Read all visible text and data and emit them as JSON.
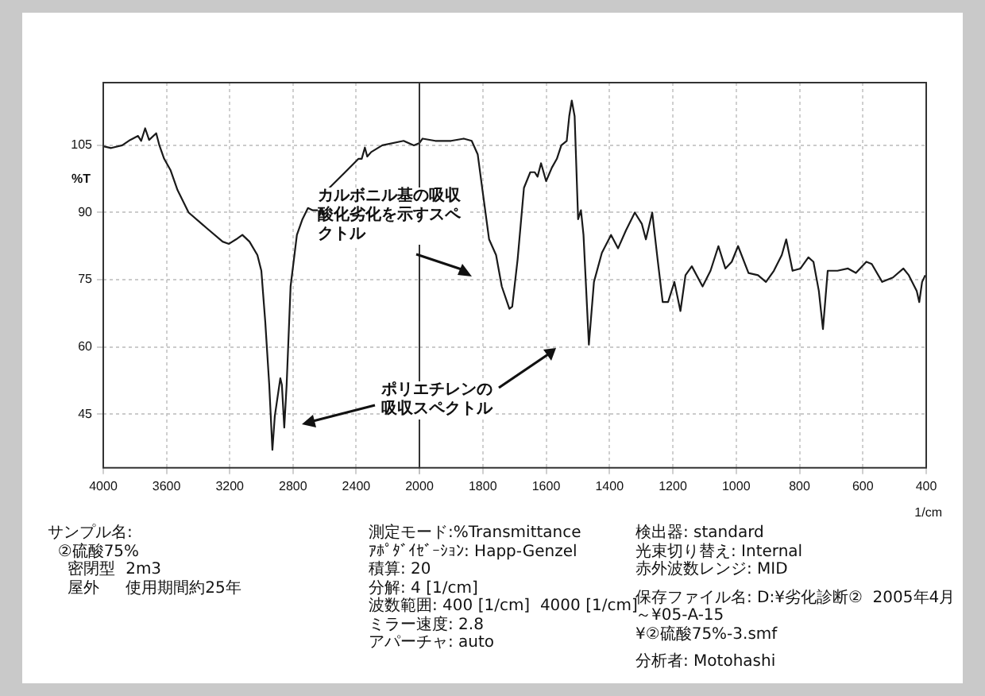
{
  "chart_data": [
    {
      "type": "line",
      "ylabel": "%T",
      "x": [
        4000,
        3950,
        3880,
        3830,
        3780,
        3760,
        3735,
        3710,
        3665,
        3645,
        3615,
        3575,
        3530,
        3460,
        3345,
        3245,
        3205,
        3160,
        3120,
        3075,
        3025,
        3000,
        2975,
        2950,
        2930,
        2915,
        2880,
        2870,
        2855,
        2840,
        2815,
        2775,
        2740,
        2705,
        2675,
        2640,
        2570,
        2470,
        2385,
        2365,
        2345,
        2330,
        2305,
        2235,
        2100,
        2035,
        2000
      ],
      "series": [
        {
          "color": "#1a1a1a",
          "values": [
            104.8,
            104.4,
            105,
            106.2,
            107.1,
            106,
            108.8,
            106.2,
            107.7,
            105,
            102,
            99.5,
            95,
            90,
            86.5,
            83.5,
            83,
            84,
            85,
            83.5,
            80.5,
            77,
            65.5,
            51.5,
            37,
            44.5,
            53,
            51.5,
            42,
            51.5,
            73.5,
            85,
            88.5,
            91,
            90.5,
            90.5,
            95.5,
            99,
            102,
            102,
            104.5,
            102.5,
            103.5,
            105,
            106,
            105,
            105.5
          ]
        }
      ],
      "xlim": [
        4000,
        2000
      ],
      "xticks": [
        4000,
        3600,
        3200,
        2800,
        2400,
        2000
      ],
      "ylim": [
        33,
        119
      ],
      "yticks": [
        105,
        90,
        75,
        60,
        45
      ],
      "grid": true,
      "annotations": [
        "カルボニル基の吸収酸化劣化を示すスペクトル",
        "ポリエチレンの吸収スペクトル",
        "サンプル名:\n  ②硫酸75%\n    密閉型  2m3\n    屋外　  使用期間約25年",
        "測定モード:%Transmittance\nｱﾎﾟﾀﾞｲｾﾞｰｼｮﾝ: Happ-Genzel\n積算: 20\n分解: 4 [1/cm]\n波数範囲: 400 [1/cm]  4000 [1/cm]\nミラー速度: 2.8\nアパーチャ: auto",
        "検出器: standard\n光束切り替え: Internal\n赤外波数レンジ: MID",
        "保存ファイル名: D:¥劣化診断②  2005年4月～¥05-A-15\n¥②硫酸75%-3.smf",
        "分析者: Motohashi"
      ]
    },
    {
      "type": "line",
      "xlabel": "1/cm",
      "x": [
        2000,
        1990,
        1950,
        1900,
        1860,
        1835,
        1816,
        1800,
        1780,
        1758,
        1740,
        1716,
        1707,
        1690,
        1670,
        1650,
        1636,
        1627,
        1616,
        1600,
        1582,
        1566,
        1552,
        1535,
        1527,
        1519,
        1510,
        1499,
        1490,
        1482,
        1465,
        1449,
        1424,
        1395,
        1373,
        1348,
        1320,
        1298,
        1285,
        1265,
        1248,
        1232,
        1215,
        1195,
        1176,
        1160,
        1140,
        1106,
        1081,
        1056,
        1034,
        1014,
        994,
        961,
        931,
        906,
        881,
        856,
        842,
        822,
        797,
        772,
        756,
        739,
        726,
        711,
        680,
        647,
        622,
        589,
        572,
        539,
        505,
        472,
        455,
        430,
        422,
        413,
        403
      ],
      "series": [
        {
          "color": "#1a1a1a",
          "values": [
            105.5,
            106.5,
            106,
            106,
            106.5,
            106,
            103,
            94.5,
            84,
            80.5,
            73.5,
            68.5,
            69,
            79.5,
            95.5,
            99,
            99,
            98,
            101,
            97,
            100,
            102,
            105,
            106,
            111.5,
            115,
            111.5,
            88.5,
            90.5,
            85,
            60.5,
            74.5,
            81,
            85,
            82,
            86,
            90,
            87.5,
            84,
            90,
            79.5,
            70,
            70,
            74.5,
            68,
            76,
            78,
            73.5,
            77,
            82.5,
            77.5,
            79,
            82.5,
            76.5,
            76,
            74.5,
            77,
            80.5,
            84,
            77,
            77.5,
            80,
            79,
            72.5,
            64,
            77,
            77,
            77.5,
            76.5,
            79,
            78.5,
            74.5,
            75.5,
            77.5,
            76,
            72.5,
            70,
            74.5,
            76
          ]
        }
      ],
      "xlim": [
        2000,
        400
      ],
      "xticks": [
        {
          "value": 2000,
          "label": null
        },
        1800,
        1600,
        1400,
        1200,
        1000,
        800,
        600,
        400
      ],
      "ylim": [
        33,
        119
      ],
      "yticks": [
        105,
        90,
        75,
        60,
        45
      ],
      "grid": true,
      "tick_labels": "x"
    }
  ]
}
